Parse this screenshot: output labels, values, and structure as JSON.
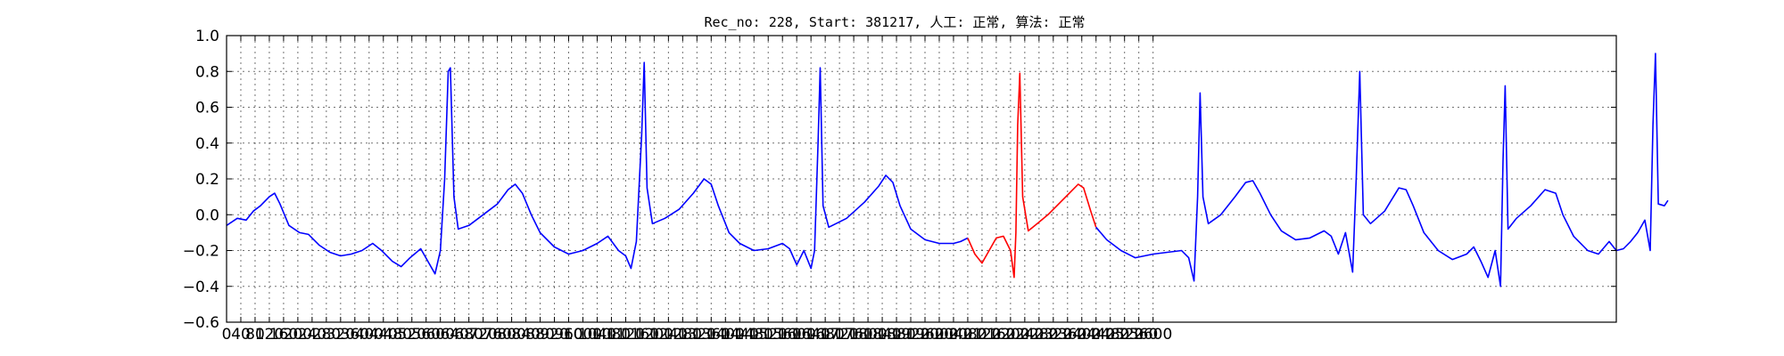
{
  "chart_data": {
    "type": "line",
    "title": "Rec_no: 228, Start: 381217, 人工: 正常, 算法: 正常",
    "xlabel": "",
    "ylabel": "",
    "xlim": [
      0,
      3900
    ],
    "ylim": [
      -0.6,
      1.0
    ],
    "grid": true,
    "xticks": [
      0,
      40,
      80,
      120,
      160,
      200,
      240,
      280,
      320,
      360,
      400,
      440,
      480,
      520,
      560,
      600,
      640,
      680,
      720,
      760,
      800,
      840,
      880,
      920,
      960,
      1000,
      1040,
      1080,
      1120,
      1160,
      1200,
      1240,
      1280,
      1320,
      1360,
      1400,
      1440,
      1480,
      1520,
      1560,
      1600,
      1640,
      1680,
      1720,
      1760,
      1800,
      1840,
      1880,
      1920,
      1960,
      2000,
      2040,
      2080,
      2120,
      2160,
      2200,
      2240,
      2280,
      2320,
      2360,
      2400,
      2440,
      2480,
      2520,
      2560,
      2600
    ],
    "yticks": [
      "1.0",
      "0.8",
      "0.6",
      "0.4",
      "0.2",
      "0.0",
      "−0.2",
      "−0.4",
      "−0.6"
    ],
    "colors": {
      "base_signal": "#0000ff",
      "highlight_signal": "#ff0000"
    },
    "series": [
      {
        "color": "#0000ff",
        "points": [
          [
            0,
            -0.06
          ],
          [
            30,
            -0.02
          ],
          [
            55,
            -0.03
          ],
          [
            75,
            0.02
          ],
          [
            95,
            0.05
          ],
          [
            120,
            0.1
          ],
          [
            135,
            0.12
          ],
          [
            150,
            0.06
          ],
          [
            175,
            -0.06
          ],
          [
            205,
            -0.1
          ],
          [
            230,
            -0.11
          ],
          [
            260,
            -0.17
          ],
          [
            290,
            -0.21
          ],
          [
            320,
            -0.23
          ],
          [
            350,
            -0.22
          ],
          [
            380,
            -0.2
          ],
          [
            410,
            -0.16
          ],
          [
            435,
            -0.2
          ],
          [
            465,
            -0.26
          ],
          [
            490,
            -0.29
          ],
          [
            515,
            -0.24
          ],
          [
            545,
            -0.19
          ],
          [
            565,
            -0.26
          ],
          [
            585,
            -0.33
          ],
          [
            600,
            -0.2
          ],
          [
            612,
            0.2
          ],
          [
            622,
            0.8
          ],
          [
            628,
            0.82
          ],
          [
            638,
            0.1
          ],
          [
            650,
            -0.08
          ],
          [
            680,
            -0.06
          ],
          [
            720,
            0.0
          ],
          [
            760,
            0.06
          ],
          [
            790,
            0.14
          ],
          [
            810,
            0.17
          ],
          [
            830,
            0.12
          ],
          [
            855,
            0.0
          ],
          [
            880,
            -0.1
          ],
          [
            920,
            -0.18
          ],
          [
            960,
            -0.22
          ],
          [
            1000,
            -0.2
          ],
          [
            1040,
            -0.16
          ],
          [
            1070,
            -0.12
          ],
          [
            1100,
            -0.2
          ],
          [
            1120,
            -0.23
          ],
          [
            1135,
            -0.3
          ],
          [
            1150,
            -0.15
          ],
          [
            1165,
            0.45
          ],
          [
            1172,
            0.85
          ],
          [
            1180,
            0.15
          ],
          [
            1195,
            -0.05
          ],
          [
            1230,
            -0.02
          ],
          [
            1270,
            0.03
          ],
          [
            1310,
            0.12
          ],
          [
            1340,
            0.2
          ],
          [
            1360,
            0.17
          ],
          [
            1380,
            0.05
          ],
          [
            1410,
            -0.1
          ],
          [
            1440,
            -0.16
          ],
          [
            1480,
            -0.2
          ],
          [
            1520,
            -0.19
          ],
          [
            1560,
            -0.16
          ],
          [
            1580,
            -0.19
          ],
          [
            1600,
            -0.28
          ],
          [
            1620,
            -0.2
          ],
          [
            1640,
            -0.3
          ],
          [
            1650,
            -0.2
          ],
          [
            1660,
            0.4
          ],
          [
            1666,
            0.82
          ],
          [
            1674,
            0.05
          ],
          [
            1690,
            -0.07
          ],
          [
            1740,
            -0.02
          ],
          [
            1790,
            0.07
          ],
          [
            1830,
            0.16
          ],
          [
            1850,
            0.22
          ],
          [
            1870,
            0.18
          ],
          [
            1890,
            0.05
          ],
          [
            1920,
            -0.08
          ],
          [
            1960,
            -0.14
          ],
          [
            2000,
            -0.16
          ],
          [
            2040,
            -0.16
          ],
          [
            2060,
            -0.15
          ],
          [
            2080,
            -0.13
          ]
        ]
      },
      {
        "color": "#ff0000",
        "points": [
          [
            2080,
            -0.13
          ],
          [
            2100,
            -0.22
          ],
          [
            2120,
            -0.27
          ],
          [
            2140,
            -0.2
          ],
          [
            2160,
            -0.13
          ],
          [
            2180,
            -0.12
          ],
          [
            2200,
            -0.2
          ],
          [
            2210,
            -0.35
          ],
          [
            2215,
            -0.1
          ],
          [
            2220,
            0.5
          ],
          [
            2226,
            0.79
          ],
          [
            2234,
            0.1
          ],
          [
            2250,
            -0.09
          ],
          [
            2275,
            -0.05
          ],
          [
            2305,
            0.0
          ],
          [
            2340,
            0.07
          ],
          [
            2370,
            0.13
          ],
          [
            2390,
            0.17
          ],
          [
            2405,
            0.15
          ],
          [
            2425,
            0.02
          ],
          [
            2440,
            -0.07
          ]
        ]
      },
      {
        "color": "#0000ff",
        "points": [
          [
            2440,
            -0.07
          ],
          [
            2470,
            -0.14
          ],
          [
            2510,
            -0.2
          ],
          [
            2550,
            -0.24
          ],
          [
            2600,
            -0.22
          ],
          [
            2640,
            -0.21
          ],
          [
            2680,
            -0.2
          ],
          [
            2700,
            -0.24
          ],
          [
            2715,
            -0.37
          ],
          [
            2725,
            0.1
          ],
          [
            2732,
            0.68
          ],
          [
            2740,
            0.1
          ],
          [
            2755,
            -0.05
          ],
          [
            2790,
            0.0
          ],
          [
            2830,
            0.1
          ],
          [
            2860,
            0.18
          ],
          [
            2880,
            0.19
          ],
          [
            2900,
            0.12
          ],
          [
            2930,
            0.0
          ],
          [
            2960,
            -0.09
          ],
          [
            3000,
            -0.14
          ],
          [
            3040,
            -0.13
          ],
          [
            3080,
            -0.09
          ],
          [
            3100,
            -0.12
          ],
          [
            3120,
            -0.22
          ],
          [
            3140,
            -0.1
          ],
          [
            3160,
            -0.32
          ],
          [
            3170,
            0.2
          ],
          [
            3180,
            0.8
          ],
          [
            3190,
            0.0
          ],
          [
            3210,
            -0.05
          ],
          [
            3250,
            0.02
          ],
          [
            3290,
            0.15
          ],
          [
            3310,
            0.14
          ],
          [
            3330,
            0.05
          ],
          [
            3360,
            -0.1
          ],
          [
            3400,
            -0.2
          ],
          [
            3440,
            -0.25
          ],
          [
            3480,
            -0.22
          ],
          [
            3500,
            -0.18
          ],
          [
            3520,
            -0.26
          ],
          [
            3540,
            -0.35
          ],
          [
            3560,
            -0.2
          ],
          [
            3575,
            -0.4
          ],
          [
            3582,
            0.3
          ],
          [
            3588,
            0.72
          ],
          [
            3596,
            -0.08
          ],
          [
            3620,
            -0.02
          ],
          [
            3660,
            0.05
          ],
          [
            3700,
            0.14
          ],
          [
            3730,
            0.12
          ],
          [
            3750,
            0.0
          ],
          [
            3780,
            -0.12
          ],
          [
            3820,
            -0.2
          ],
          [
            3850,
            -0.22
          ],
          [
            3880,
            -0.15
          ],
          [
            3900,
            -0.2
          ],
          [
            3920,
            -0.19
          ],
          [
            3940,
            -0.15
          ],
          [
            3960,
            -0.1
          ],
          [
            3980,
            -0.03
          ],
          [
            3995,
            -0.2
          ],
          [
            4003,
            0.5
          ],
          [
            4010,
            0.9
          ],
          [
            4018,
            0.06
          ],
          [
            4035,
            0.05
          ],
          [
            4045,
            0.08
          ]
        ]
      }
    ]
  }
}
